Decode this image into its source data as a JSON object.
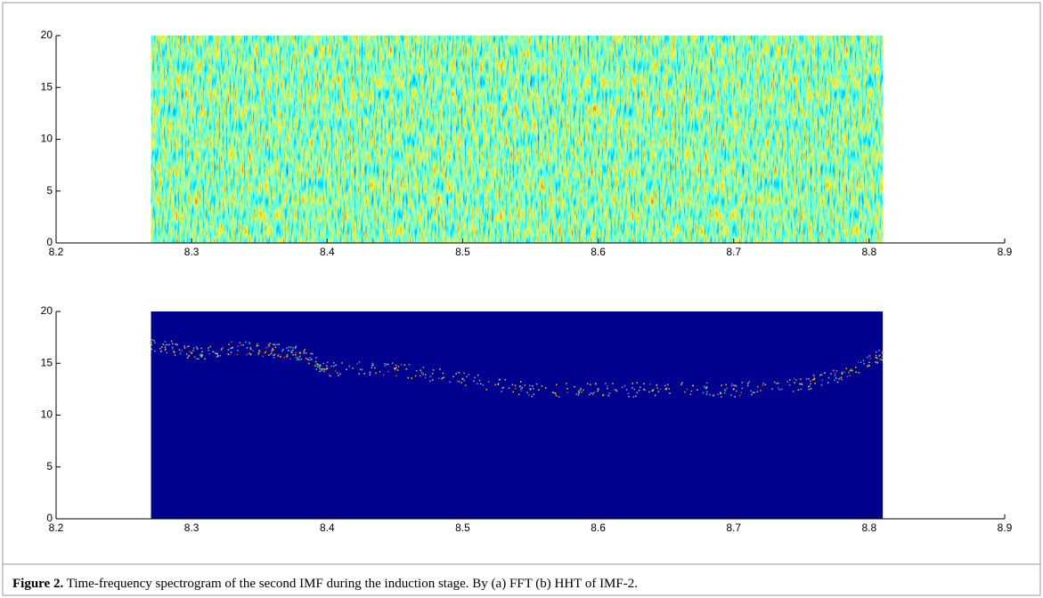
{
  "chart_data": [
    {
      "type": "heatmap",
      "data_xlim": [
        8.27,
        8.81
      ],
      "xlim": [
        8.2,
        8.9
      ],
      "xticks": [
        8.2,
        8.3,
        8.4,
        8.5,
        8.6,
        8.7,
        8.8,
        8.9
      ],
      "ylim": [
        0,
        20
      ],
      "yticks": [
        0,
        5,
        10,
        15,
        20
      ]
    },
    {
      "type": "heatmap",
      "data_xlim": [
        8.27,
        8.81
      ],
      "xlim": [
        8.2,
        8.9
      ],
      "xticks": [
        8.2,
        8.3,
        8.4,
        8.5,
        8.6,
        8.7,
        8.8,
        8.9
      ],
      "ylim": [
        0,
        20
      ],
      "yticks": [
        0,
        5,
        10,
        15,
        20
      ],
      "ridge": {
        "x": [
          8.27,
          8.3,
          8.33,
          8.36,
          8.38,
          8.4,
          8.45,
          8.5,
          8.55,
          8.6,
          8.65,
          8.7,
          8.75,
          8.78,
          8.81
        ],
        "values": [
          17,
          16,
          16.5,
          16.3,
          16,
          14.5,
          14.5,
          13.5,
          12.5,
          12.5,
          12.5,
          12.5,
          13,
          14,
          16
        ]
      }
    }
  ],
  "caption": {
    "label": "Figure 2.",
    "text": "Time-frequency spectrogram of the second IMF during the induction stage. By (a) FFT (b) HHT of IMF-2."
  }
}
